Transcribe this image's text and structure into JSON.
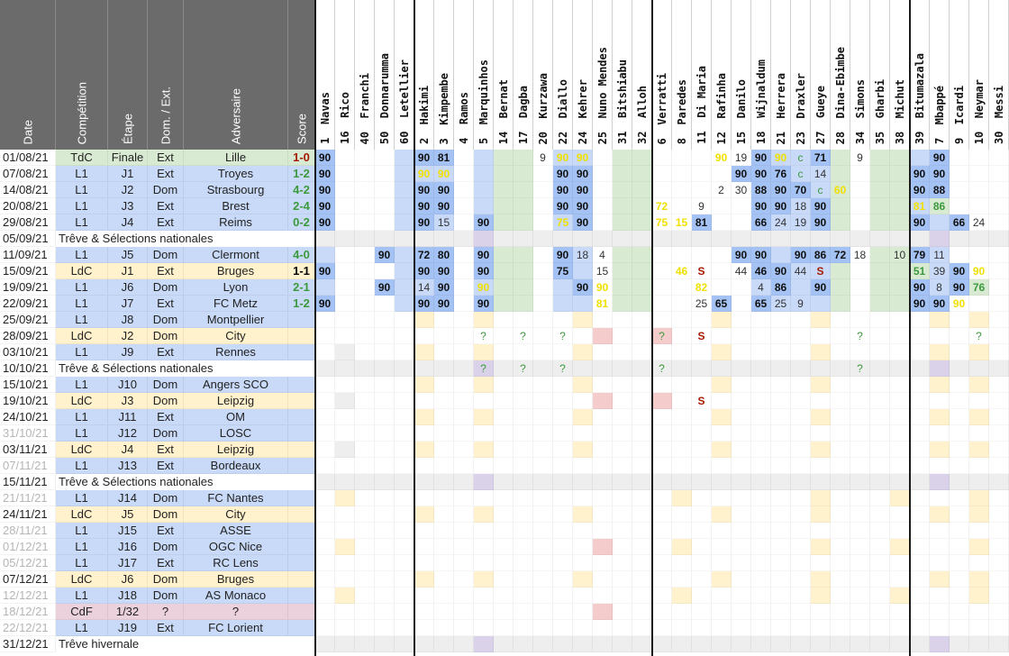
{
  "info_headers": [
    "Date",
    "Compétition",
    "Étape",
    "Dom. / Ext.",
    "Adversaire",
    "Score"
  ],
  "players": [
    {
      "n": "1",
      "name": "Navas"
    },
    {
      "n": "16",
      "name": "Rico"
    },
    {
      "n": "40",
      "name": "Franchi"
    },
    {
      "n": "50",
      "name": "Donnarumma"
    },
    {
      "n": "60",
      "name": "Letellier"
    },
    {
      "n": "2",
      "name": "Hakimi"
    },
    {
      "n": "3",
      "name": "Kimpembe"
    },
    {
      "n": "4",
      "name": "Ramos"
    },
    {
      "n": "5",
      "name": "Marquinhos"
    },
    {
      "n": "14",
      "name": "Bernat"
    },
    {
      "n": "17",
      "name": "Dagba"
    },
    {
      "n": "20",
      "name": "Kurzawa"
    },
    {
      "n": "22",
      "name": "Diallo"
    },
    {
      "n": "24",
      "name": "Kehrer"
    },
    {
      "n": "25",
      "name": "Nuno Mendes"
    },
    {
      "n": "31",
      "name": "Bitshiabu"
    },
    {
      "n": "32",
      "name": "Alloh"
    },
    {
      "n": "6",
      "name": "Verratti"
    },
    {
      "n": "8",
      "name": "Paredes"
    },
    {
      "n": "11",
      "name": "Di Maria"
    },
    {
      "n": "12",
      "name": "Rafinha"
    },
    {
      "n": "15",
      "name": "Danilo"
    },
    {
      "n": "18",
      "name": "Wijnaldum"
    },
    {
      "n": "21",
      "name": "Herrera"
    },
    {
      "n": "23",
      "name": "Draxler"
    },
    {
      "n": "27",
      "name": "Gueye"
    },
    {
      "n": "28",
      "name": "Dina-Ebimbe"
    },
    {
      "n": "34",
      "name": "Simons"
    },
    {
      "n": "35",
      "name": "Gharbi"
    },
    {
      "n": "38",
      "name": "Michut"
    },
    {
      "n": "39",
      "name": "Bitumazala"
    },
    {
      "n": "7",
      "name": "Mbappé"
    },
    {
      "n": "9",
      "name": "Icardi"
    },
    {
      "n": "10",
      "name": "Neymar"
    },
    {
      "n": "30",
      "name": "Messi"
    }
  ],
  "truce_label": "Trêve & Sélections nationales",
  "winter_label": "Trêve hivernale",
  "matches": [
    {
      "date": "01/08/21",
      "comp": "TdC",
      "stage": "Finale",
      "venue": "Ext",
      "opp": "Lille",
      "score": "1-0",
      "res": "L",
      "kind": "tdc",
      "m": {
        "0": "B:90",
        "5": "B:90",
        "6": "B:81",
        "11": "9",
        "12": "Y:90",
        "13": "Y:90",
        "20": "Y:90",
        "21": "19",
        "22": "B:90",
        "23": "Y:90",
        "24": "c",
        "25": "B:71",
        "27": "9",
        "31": "B:90"
      }
    },
    {
      "date": "07/08/21",
      "comp": "L1",
      "stage": "J1",
      "venue": "Ext",
      "opp": "Troyes",
      "score": "1-2",
      "res": "W",
      "kind": "l1",
      "m": {
        "0": "B:90",
        "5": "Y:90",
        "6": "Y:90",
        "12": "B:90",
        "13": "B:90",
        "21": "B:90",
        "22": "B:90",
        "23": "B:76",
        "24": "c",
        "25": "14",
        "30": "B:90",
        "31": "B:90"
      }
    },
    {
      "date": "14/08/21",
      "comp": "L1",
      "stage": "J2",
      "venue": "Dom",
      "opp": "Strasbourg",
      "score": "4-2",
      "res": "W",
      "kind": "l1",
      "m": {
        "0": "B:90",
        "5": "B:90",
        "6": "B:90",
        "12": "B:90",
        "13": "B:90",
        "20": "2",
        "21": "30",
        "22": "B:88",
        "23": "B:90",
        "24": "B:70",
        "25": "c",
        "26": "Y:60",
        "30": "B:90",
        "31": "B:88"
      }
    },
    {
      "date": "20/08/21",
      "comp": "L1",
      "stage": "J3",
      "venue": "Ext",
      "opp": "Brest",
      "score": "2-4",
      "res": "W",
      "kind": "l1",
      "m": {
        "0": "B:90",
        "5": "B:90",
        "6": "B:90",
        "12": "B:90",
        "13": "B:90",
        "17": "Y:72",
        "19": "9",
        "22": "B:90",
        "23": "B:90",
        "24": "18",
        "25": "B:90",
        "30": "Y:81",
        "31": "G:86"
      }
    },
    {
      "date": "29/08/21",
      "comp": "L1",
      "stage": "J4",
      "venue": "Ext",
      "opp": "Reims",
      "score": "0-2",
      "res": "W",
      "kind": "l1",
      "m": {
        "0": "B:90",
        "5": "B:90",
        "6": "15",
        "8": "B:90",
        "12": "Y:75",
        "13": "B:90",
        "17": "Y:75",
        "18": "Y:15",
        "19": "B:81",
        "22": "B:66",
        "23": "24",
        "24": "19",
        "25": "B:90",
        "30": "B:90",
        "32": "B:66",
        "33": "24"
      }
    },
    {
      "truce": true,
      "date": "05/09/21"
    },
    {
      "date": "11/09/21",
      "comp": "L1",
      "stage": "J5",
      "venue": "Dom",
      "opp": "Clermont",
      "score": "4-0",
      "res": "W",
      "kind": "l1",
      "m": {
        "3": "B:90",
        "5": "B:72",
        "6": "B:80",
        "8": "B:90",
        "12": "B:90",
        "13": "18",
        "14": "4",
        "21": "B:90",
        "22": "B:90",
        "24": "B:90",
        "25": "B:86",
        "26": "B:72",
        "27": "18",
        "29": "10",
        "30": "B:79",
        "31": "11"
      }
    },
    {
      "date": "15/09/21",
      "comp": "LdC",
      "stage": "J1",
      "venue": "Ext",
      "opp": "Bruges",
      "score": "1-1",
      "res": "D",
      "kind": "ldc",
      "m": {
        "0": "B:90",
        "5": "B:90",
        "6": "B:90",
        "8": "B:90",
        "12": "B:75",
        "14": "15",
        "18": "Y:46",
        "19": "S",
        "21": "44",
        "22": "B:46",
        "23": "B:90",
        "24": "44",
        "25": "S",
        "30": "G:51",
        "31": "39",
        "32": "B:90",
        "33": "Y:90"
      }
    },
    {
      "date": "19/09/21",
      "comp": "L1",
      "stage": "J6",
      "venue": "Dom",
      "opp": "Lyon",
      "score": "2-1",
      "res": "W",
      "kind": "l1",
      "m": {
        "3": "B:90",
        "5": "14",
        "6": "B:90",
        "8": "Y:90",
        "13": "B:90",
        "14": "Y:90",
        "19": "Y:82",
        "22": "4",
        "23": "B:86",
        "25": "B:90",
        "30": "B:90",
        "31": "8",
        "32": "B:90",
        "33": "G:76"
      }
    },
    {
      "date": "22/09/21",
      "comp": "L1",
      "stage": "J7",
      "venue": "Ext",
      "opp": "FC Metz",
      "score": "1-2",
      "res": "W",
      "kind": "l1",
      "m": {
        "0": "B:90",
        "5": "B:90",
        "6": "B:90",
        "8": "B:90",
        "14": "Y:81",
        "19": "25",
        "20": "B:65",
        "22": "B:65",
        "23": "25",
        "24": "9",
        "30": "B:90",
        "31": "B:90",
        "32": "Y:90"
      }
    },
    {
      "date": "25/09/21",
      "comp": "L1",
      "stage": "J8",
      "venue": "Dom",
      "opp": "Montpellier",
      "score": "",
      "kind": "l1",
      "m": {}
    },
    {
      "date": "28/09/21",
      "comp": "LdC",
      "stage": "J2",
      "venue": "Dom",
      "opp": "City",
      "score": "",
      "kind": "ldc",
      "m": {
        "8": "?",
        "10": "?",
        "12": "?",
        "17": "?",
        "19": "S",
        "27": "?",
        "33": "?"
      }
    },
    {
      "date": "03/10/21",
      "comp": "L1",
      "stage": "J9",
      "venue": "Ext",
      "opp": "Rennes",
      "score": "",
      "kind": "l1",
      "m": {}
    },
    {
      "truce": true,
      "date": "10/10/21",
      "m": {
        "8": "?",
        "10": "?",
        "12": "?",
        "17": "?",
        "27": "?"
      }
    },
    {
      "date": "15/10/21",
      "comp": "L1",
      "stage": "J10",
      "venue": "Dom",
      "opp": "Angers SCO",
      "score": "",
      "kind": "l1",
      "m": {}
    },
    {
      "date": "19/10/21",
      "comp": "LdC",
      "stage": "J3",
      "venue": "Dom",
      "opp": "Leipzig",
      "score": "",
      "kind": "ldc",
      "m": {
        "19": "S"
      }
    },
    {
      "date": "24/10/21",
      "comp": "L1",
      "stage": "J11",
      "venue": "Ext",
      "opp": "OM",
      "score": "",
      "kind": "l1",
      "m": {}
    },
    {
      "date": "31/10/21",
      "comp": "L1",
      "stage": "J12",
      "venue": "Dom",
      "opp": "LOSC",
      "score": "",
      "kind": "l1",
      "future": true,
      "m": {}
    },
    {
      "date": "03/11/21",
      "comp": "LdC",
      "stage": "J4",
      "venue": "Ext",
      "opp": "Leipzig",
      "score": "",
      "kind": "ldc",
      "m": {}
    },
    {
      "date": "07/11/21",
      "comp": "L1",
      "stage": "J13",
      "venue": "Ext",
      "opp": "Bordeaux",
      "score": "",
      "kind": "l1",
      "future": true,
      "m": {}
    },
    {
      "truce": true,
      "date": "15/11/21"
    },
    {
      "date": "21/11/21",
      "comp": "L1",
      "stage": "J14",
      "venue": "Dom",
      "opp": "FC Nantes",
      "score": "",
      "kind": "l1",
      "future": true,
      "m": {}
    },
    {
      "date": "24/11/21",
      "comp": "LdC",
      "stage": "J5",
      "venue": "Dom",
      "opp": "City",
      "score": "",
      "kind": "ldc",
      "m": {}
    },
    {
      "date": "28/11/21",
      "comp": "L1",
      "stage": "J15",
      "venue": "Ext",
      "opp": "ASSE",
      "score": "",
      "kind": "l1",
      "future": true,
      "m": {}
    },
    {
      "date": "01/12/21",
      "comp": "L1",
      "stage": "J16",
      "venue": "Dom",
      "opp": "OGC Nice",
      "score": "",
      "kind": "l1",
      "future": true,
      "m": {}
    },
    {
      "date": "05/12/21",
      "comp": "L1",
      "stage": "J17",
      "venue": "Ext",
      "opp": "RC Lens",
      "score": "",
      "kind": "l1",
      "future": true,
      "m": {}
    },
    {
      "date": "07/12/21",
      "comp": "LdC",
      "stage": "J6",
      "venue": "Dom",
      "opp": "Bruges",
      "score": "",
      "kind": "ldc",
      "m": {}
    },
    {
      "date": "12/12/21",
      "comp": "L1",
      "stage": "J18",
      "venue": "Dom",
      "opp": "AS Monaco",
      "score": "",
      "kind": "l1",
      "future": true,
      "m": {}
    },
    {
      "date": "18/12/21",
      "comp": "CdF",
      "stage": "1/32",
      "venue": "?",
      "opp": "?",
      "score": "",
      "kind": "cdf",
      "future": true,
      "m": {}
    },
    {
      "date": "22/12/21",
      "comp": "L1",
      "stage": "J19",
      "venue": "Ext",
      "opp": "FC Lorient",
      "score": "",
      "kind": "l1",
      "future": true,
      "m": {}
    },
    {
      "winter": true,
      "date": "31/12/21"
    }
  ],
  "colors": {
    "header": "#6b6b6b",
    "l1": "#c9daf8",
    "ldc": "#fff2cc",
    "tdc": "#d9ead3",
    "cdf": "#ead1dc",
    "truce": "#e8e8e8",
    "blue": "#a4c2f4",
    "lightblue": "#c9daf8",
    "green": "#d9ead3",
    "yellow": "#fff2cc",
    "pink": "#f4cccc",
    "grey": "#eeeeee",
    "lavender": "#d9d2e9",
    "num_yellow": "#f0e000",
    "num_green": "#3c9a3c",
    "win": "#3c9a3c",
    "loss": "#a61c00",
    "draw": "#000000",
    "sub": "#a61c00"
  }
}
